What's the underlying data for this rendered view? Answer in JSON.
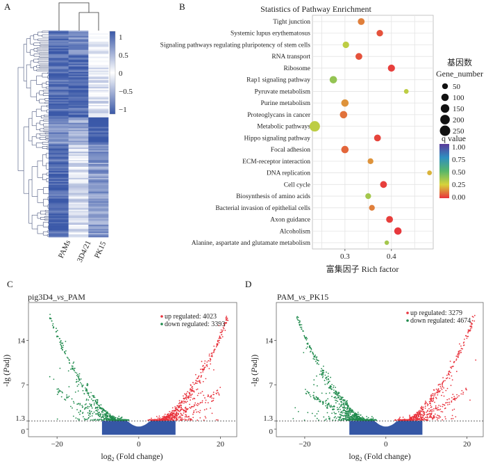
{
  "panel_labels": {
    "a": "A",
    "b": "B",
    "c": "C",
    "d": "D"
  },
  "heatmap": {
    "columns": [
      "PAMs",
      "3D4/21",
      "PK15"
    ],
    "legend_ticks": [
      "1",
      "0.5",
      "0",
      "−0.5",
      "−1"
    ],
    "colors": {
      "low": "#3a58a8",
      "mid": "#ffffff",
      "high": "#3a58a8"
    }
  },
  "chart_data": [
    {
      "type": "scatter",
      "title": "Statistics of Pathway Enrichment",
      "xlabel": "富集因子 Rich factor",
      "ylabel": "",
      "xlim": [
        0.23,
        0.49
      ],
      "xticks": [
        "0.3",
        "0.4"
      ],
      "size_legend_title_cn": "基因数",
      "size_legend_title": "Gene_number",
      "size_legend_values": [
        50,
        100,
        150,
        200,
        250
      ],
      "color_legend_title": "q value",
      "color_legend_values": [
        "1.00",
        "0.75",
        "0.50",
        "0.25",
        "0.00"
      ],
      "pathways": [
        {
          "name": "Tight junction",
          "rich": 0.335,
          "q": 0.12,
          "genes": 80
        },
        {
          "name": "Systemic lupus erythematosus",
          "rich": 0.375,
          "q": 0.05,
          "genes": 70
        },
        {
          "name": "Signaling pathways regulating pluripotency of stem cells",
          "rich": 0.302,
          "q": 0.3,
          "genes": 70
        },
        {
          "name": "RNA transport",
          "rich": 0.33,
          "q": 0.05,
          "genes": 80
        },
        {
          "name": "Ribosome",
          "rich": 0.4,
          "q": 0.02,
          "genes": 90
        },
        {
          "name": "Rap1 signaling pathway",
          "rich": 0.275,
          "q": 0.38,
          "genes": 100
        },
        {
          "name": "Pyruvate metabolism",
          "rich": 0.432,
          "q": 0.3,
          "genes": 25
        },
        {
          "name": "Purine metabolism",
          "rich": 0.3,
          "q": 0.15,
          "genes": 100
        },
        {
          "name": "Proteoglycans in cancer",
          "rich": 0.297,
          "q": 0.1,
          "genes": 100
        },
        {
          "name": "Metabolic pathways",
          "rich": 0.235,
          "q": 0.3,
          "genes": 250
        },
        {
          "name": "Hippo signaling pathway",
          "rich": 0.37,
          "q": 0.03,
          "genes": 80
        },
        {
          "name": "Focal adhesion",
          "rich": 0.3,
          "q": 0.08,
          "genes": 100
        },
        {
          "name": "ECM-receptor interaction",
          "rich": 0.355,
          "q": 0.15,
          "genes": 50
        },
        {
          "name": "DNA replication",
          "rich": 0.482,
          "q": 0.2,
          "genes": 25
        },
        {
          "name": "Cell cycle",
          "rich": 0.383,
          "q": 0.02,
          "genes": 80
        },
        {
          "name": "Biosynthesis of amino acids",
          "rich": 0.35,
          "q": 0.35,
          "genes": 50
        },
        {
          "name": "Bacterial invasion of epithelial cells",
          "rich": 0.358,
          "q": 0.12,
          "genes": 50
        },
        {
          "name": "Axon guidance",
          "rich": 0.396,
          "q": 0.02,
          "genes": 80
        },
        {
          "name": "Alcoholism",
          "rich": 0.414,
          "q": 0.01,
          "genes": 100
        },
        {
          "name": "Alanine, aspartate and glutamate metabolism",
          "rich": 0.39,
          "q": 0.35,
          "genes": 20
        }
      ]
    },
    {
      "type": "scatter",
      "title_prefix": "pig3D4_",
      "title_vs": "vs",
      "title_suffix": "_PAM",
      "xlabel_pre": "log",
      "xlabel_sub": "2",
      "xlabel_post": " (Fold change)",
      "ylabel_pre": "-lg (",
      "ylabel_italic": "P",
      "ylabel_post": "adj)",
      "xlim": [
        -27,
        24
      ],
      "ylim": [
        -1.2,
        20
      ],
      "xticks": [
        "−20",
        "0",
        "20"
      ],
      "yticks": [
        "0",
        "1.3",
        "7",
        "14"
      ],
      "threshold": 1.3,
      "legend": [
        "up regulated: 4023",
        "down regulated: 3393"
      ],
      "up_count": 4023,
      "down_count": 3393,
      "colors": {
        "up": "#e8323c",
        "down": "#1f8a4c",
        "ns": "#3557a5"
      }
    },
    {
      "type": "scatter",
      "title_prefix": "PAM_",
      "title_vs": "vs",
      "title_suffix": "_PK15",
      "xlabel_pre": "log",
      "xlabel_sub": "2",
      "xlabel_post": " (Fold change)",
      "ylabel_pre": "-lg (",
      "ylabel_italic": "P",
      "ylabel_post": "adj)",
      "xlim": [
        -27,
        24
      ],
      "ylim": [
        -1.2,
        20
      ],
      "xticks": [
        "−20",
        "0",
        "20"
      ],
      "yticks": [
        "0",
        "1.3",
        "7",
        "14"
      ],
      "threshold": 1.3,
      "legend": [
        "up regulated: 3279",
        "down regulated: 4674"
      ],
      "up_count": 3279,
      "down_count": 4674,
      "colors": {
        "up": "#e8323c",
        "down": "#1f8a4c",
        "ns": "#3557a5"
      }
    }
  ]
}
